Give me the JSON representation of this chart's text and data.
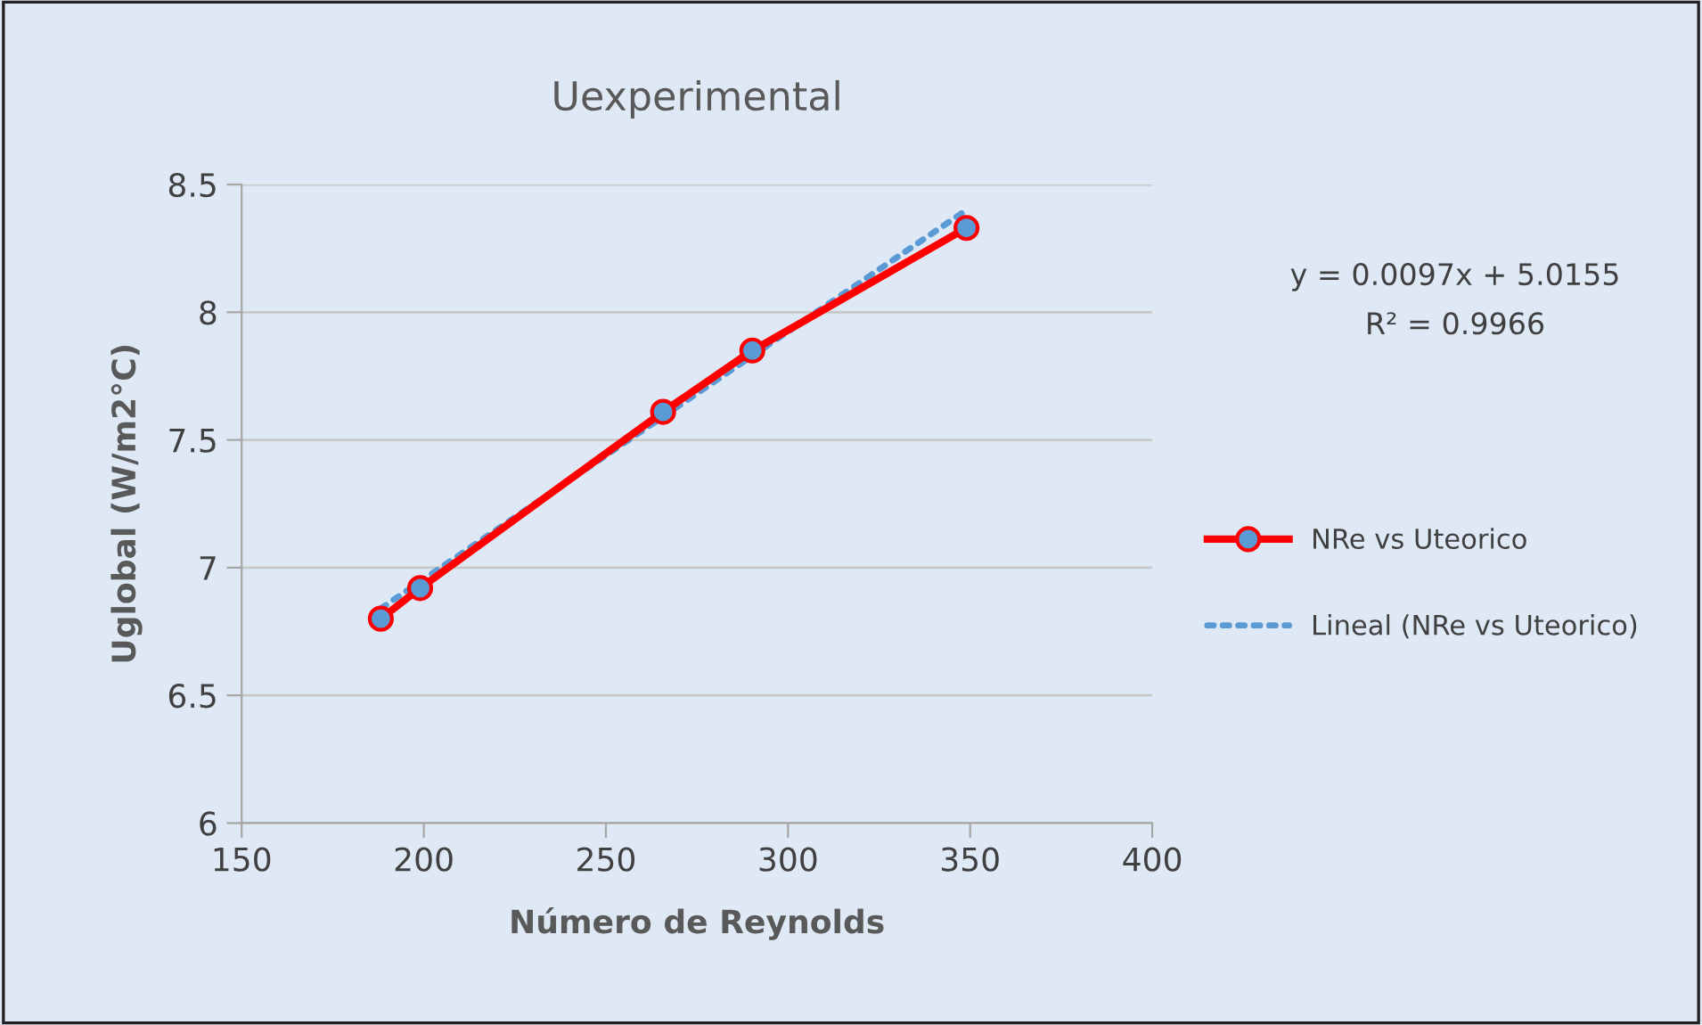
{
  "chart_data": {
    "type": "line",
    "title": "Uexperimental",
    "xlabel": "Número de Reynolds",
    "ylabel": "Uglobal (W/m2°C)",
    "annotations": [
      "y = 0.0097x + 5.0155",
      "R² = 0.9966"
    ],
    "series": [
      {
        "name": "NRe vs Uteorico",
        "color": "#ff0000",
        "marker": "circle",
        "line_style": "solid",
        "x": [
          188.2,
          199,
          265.7,
          290.2,
          349
        ],
        "values": [
          6.8,
          6.92,
          7.61,
          7.85,
          8.33
        ]
      },
      {
        "name": "Lineal (NRe vs Uteorico)",
        "color": "#5b9bd5",
        "marker": "none",
        "line_style": "dotted",
        "x": [
          188.2,
          349
        ],
        "values": [
          6.84,
          8.4
        ]
      }
    ],
    "xlim": [
      150,
      400
    ],
    "xticks": [
      150,
      200,
      250,
      300,
      350,
      400
    ],
    "ylim": [
      6,
      8.5
    ],
    "yticks": [
      6,
      6.5,
      7,
      7.5,
      8,
      8.5
    ],
    "grid": "y",
    "legend": "right"
  }
}
